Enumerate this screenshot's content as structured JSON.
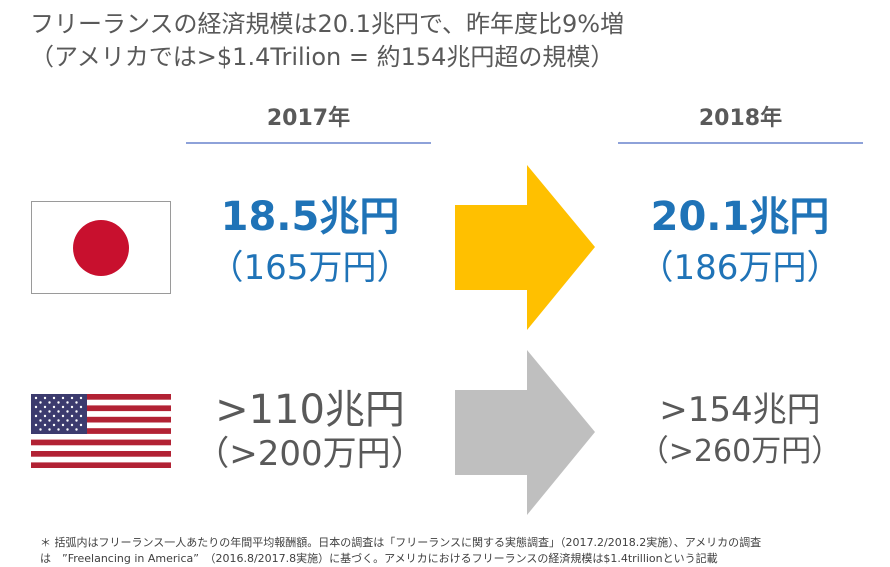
{
  "title": {
    "line1": "フリーランスの経済規模は20.1兆円で、昨年度比9%増",
    "line2": "（アメリカでは>$1.4Trilion = 約154兆円超の規模）"
  },
  "years": {
    "left": "2017年",
    "right": "2018年"
  },
  "japan": {
    "v2017": "18.5兆円",
    "sub2017": "（165万円）",
    "v2018": "20.1兆円",
    "sub2018": "（186万円）",
    "arrow_color": "#ffc000"
  },
  "usa": {
    "v2017": ">110兆円",
    "sub2017": "（>200万円）",
    "v2018": ">154兆円",
    "sub2018": "（>260万円）",
    "arrow_color": "#bfbfbf"
  },
  "footnote": {
    "line1": "＊ 括弧内はフリーランス一人あたりの年間平均報酬額。日本の調査は「フリーランスに関する実態調査」（2017.2/2018.2実施）、アメリカの調査",
    "line2": "は　”Freelancing in America”　（2016.8/2017.8実施）に基づく。アメリカにおけるフリーランスの経済規模は$1.4trillionという記載"
  }
}
